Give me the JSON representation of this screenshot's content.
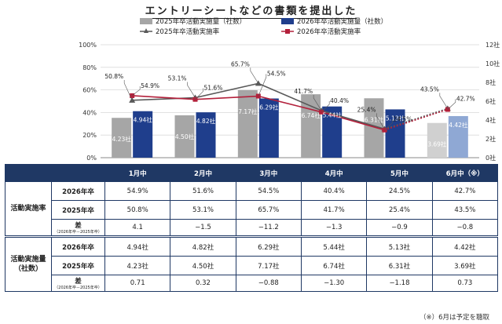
{
  "title": "エントリーシートなどの書類を提出した",
  "note": "（※）6月は予定を聴取",
  "colors": {
    "bar2025": "#a6a6a6",
    "bar2026": "#1f3e8c",
    "bar2025_planned": "#d0d0d0",
    "bar2026_planned": "#8fa8d4",
    "line2025": "#595959",
    "line2026": "#b3203b",
    "header_bg": "#1f3864"
  },
  "chart_data": {
    "type": "bar",
    "categories": [
      "1月中",
      "2月中",
      "3月中",
      "4月中",
      "5月中",
      "6月中（※）"
    ],
    "y_left": {
      "ticks": [
        "0%",
        "20%",
        "40%",
        "60%",
        "80%",
        "100%"
      ],
      "ylim": [
        0,
        100
      ]
    },
    "y_right": {
      "ticks": [
        "0社",
        "2社",
        "4社",
        "6社",
        "8社",
        "10社",
        "12社"
      ],
      "ylim": [
        0,
        12
      ]
    },
    "legend": [
      "2025年卒活動実施量（社数）",
      "2026年卒活動実施量（社数）",
      "2025年卒活動実施率",
      "2026年卒活動実施率"
    ],
    "series": [
      {
        "name": "2025年卒活動実施量（社数）",
        "axis": "right",
        "kind": "bar",
        "values": [
          4.23,
          4.5,
          7.17,
          6.74,
          6.31,
          3.69
        ],
        "labels": [
          "4.23社",
          "4.50社",
          "7.17社",
          "6.74社",
          "6.31社",
          "3.69社"
        ]
      },
      {
        "name": "2026年卒活動実施量（社数）",
        "axis": "right",
        "kind": "bar",
        "values": [
          4.94,
          4.82,
          6.29,
          5.44,
          5.13,
          4.42
        ],
        "labels": [
          "4.94社",
          "4.82社",
          "6.29社",
          "5.44社",
          "5.13社",
          "4.42社"
        ]
      },
      {
        "name": "2025年卒活動実施率",
        "axis": "left",
        "kind": "line",
        "values": [
          50.8,
          53.1,
          65.7,
          41.7,
          25.4,
          43.5
        ],
        "labels": [
          "50.8%",
          "53.1%",
          "65.7%",
          "41.7%",
          "25.4%",
          "43.5%"
        ]
      },
      {
        "name": "2026年卒活動実施率",
        "axis": "left",
        "kind": "line",
        "values": [
          54.9,
          51.6,
          54.5,
          40.4,
          24.5,
          42.7
        ],
        "labels": [
          "54.9%",
          "51.6%",
          "54.5%",
          "40.4%",
          "24.5%",
          "42.7%"
        ]
      }
    ]
  },
  "table": {
    "headers": [
      "1月中",
      "2月中",
      "3月中",
      "4月中",
      "5月中",
      "6月中（※）"
    ],
    "groups": [
      {
        "label": "活動実施率",
        "label2": "",
        "rows": [
          {
            "label": "2026年卒",
            "sub": "",
            "cells": [
              "54.9%",
              "51.6%",
              "54.5%",
              "40.4%",
              "24.5%",
              "42.7%"
            ]
          },
          {
            "label": "2025年卒",
            "sub": "",
            "cells": [
              "50.8%",
              "53.1%",
              "65.7%",
              "41.7%",
              "25.4%",
              "43.5%"
            ]
          },
          {
            "label": "差",
            "sub": "（2026年卒－2025年卒）",
            "cells": [
              "4.1",
              "−1.5",
              "−11.2",
              "−1.3",
              "−0.9",
              "−0.8"
            ]
          }
        ]
      },
      {
        "label": "活動実施量",
        "label2": "（社数）",
        "rows": [
          {
            "label": "2026年卒",
            "sub": "",
            "cells": [
              "4.94社",
              "4.82社",
              "6.29社",
              "5.44社",
              "5.13社",
              "4.42社"
            ]
          },
          {
            "label": "2025年卒",
            "sub": "",
            "cells": [
              "4.23社",
              "4.50社",
              "7.17社",
              "6.74社",
              "6.31社",
              "3.69社"
            ]
          },
          {
            "label": "差",
            "sub": "（2026年卒－2025年卒）",
            "cells": [
              "0.71",
              "0.32",
              "−0.88",
              "−1.30",
              "−1.18",
              "0.73"
            ]
          }
        ]
      }
    ]
  }
}
